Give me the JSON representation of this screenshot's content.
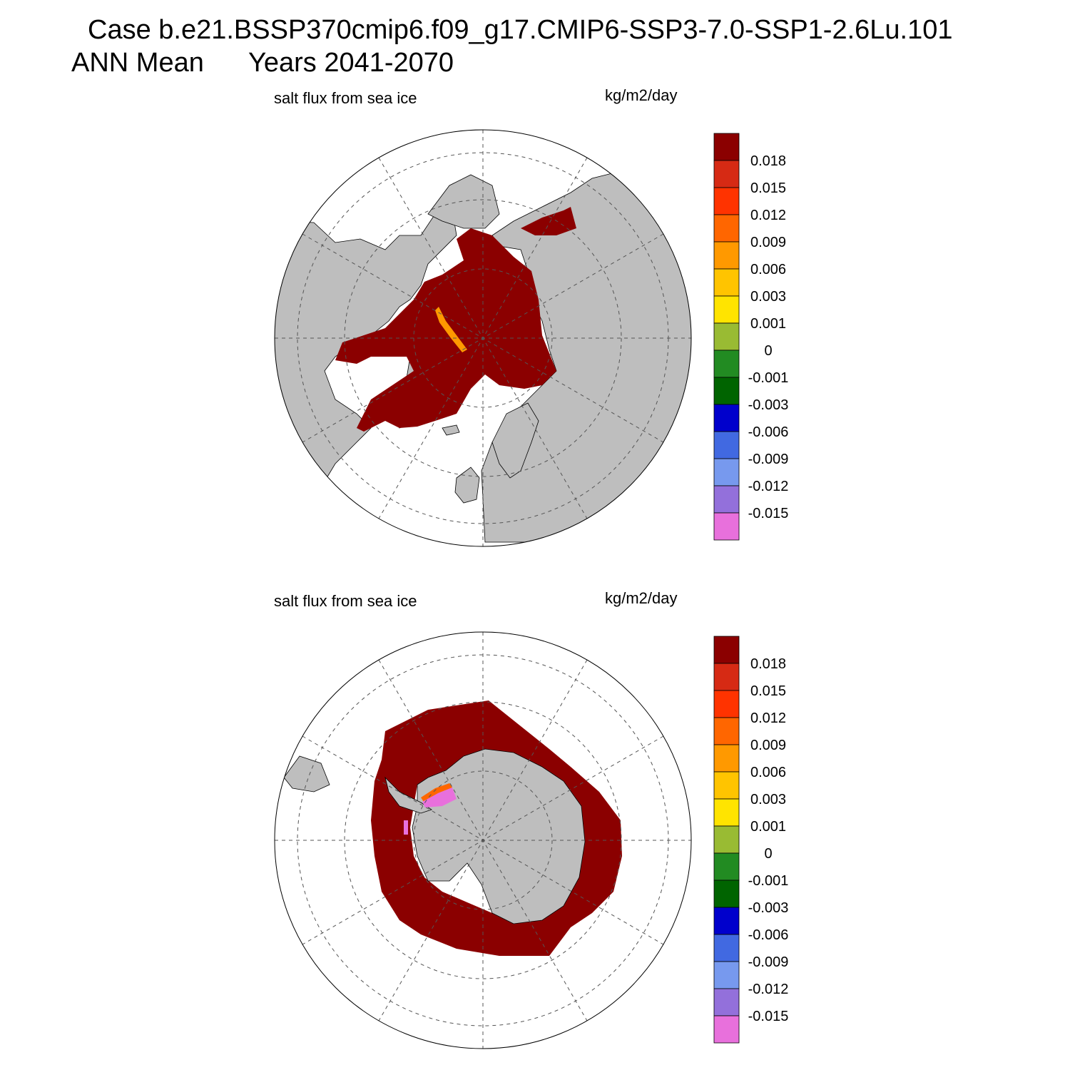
{
  "header": {
    "title_line1": "Case b.e21.BSSP370cmip6.f09_g17.CMIP6-SSP3-7.0-SSP1-2.6Lu.101",
    "title_ann": "ANN Mean",
    "title_years": "Years 2041-2070"
  },
  "panels": [
    {
      "id": "north",
      "variable_label": "salt flux from sea ice",
      "units_label": "kg/m2/day"
    },
    {
      "id": "south",
      "variable_label": "salt flux from sea ice",
      "units_label": "kg/m2/day"
    }
  ],
  "colorbar": {
    "levels": [
      "0.018",
      "0.015",
      "0.012",
      "0.009",
      "0.006",
      "0.003",
      "0.001",
      "0",
      "-0.001",
      "-0.003",
      "-0.006",
      "-0.009",
      "-0.012",
      "-0.015"
    ],
    "colors": [
      "#8b0000",
      "#d62a14",
      "#ff3300",
      "#ff6600",
      "#ff9900",
      "#ffc400",
      "#ffe400",
      "#99bb33",
      "#228b22",
      "#006400",
      "#0000cc",
      "#4169e1",
      "#7799ee",
      "#9370db",
      "#e870dc"
    ]
  },
  "map_colors": {
    "land": "#bebebe",
    "ocean": "#ffffff",
    "ice_flux_dominant": "#8b0000",
    "coastline": "#000000"
  }
}
